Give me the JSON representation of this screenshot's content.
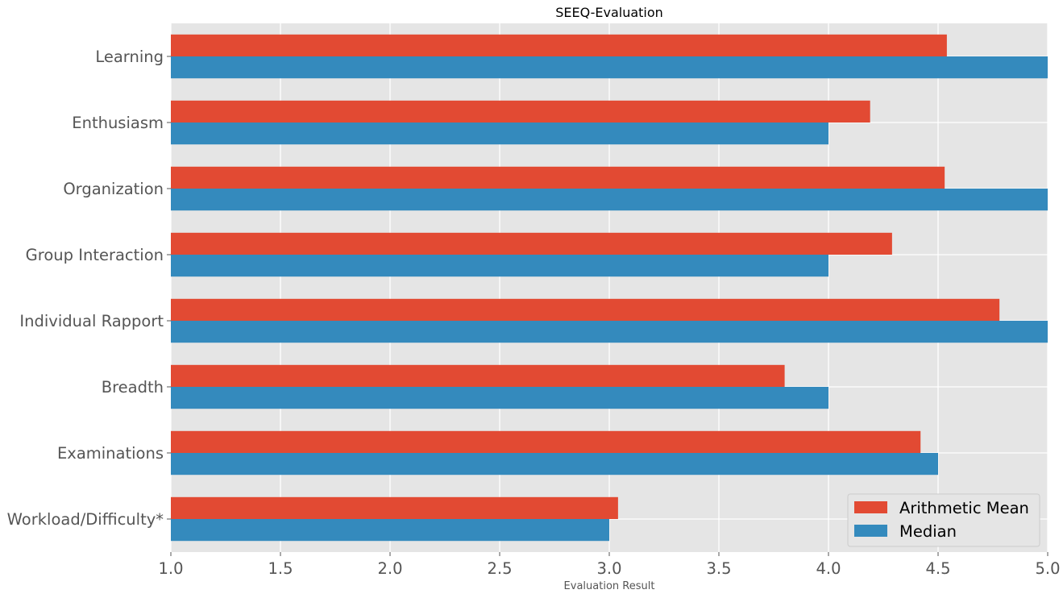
{
  "chart_data": {
    "type": "bar",
    "orientation": "horizontal",
    "title": "SEEQ-Evaluation",
    "xlabel": "Evaluation Result",
    "ylabel": "",
    "xlim": [
      1.0,
      5.0
    ],
    "xticks": [
      "1.0",
      "1.5",
      "2.0",
      "2.5",
      "3.0",
      "3.5",
      "4.0",
      "4.5",
      "5.0"
    ],
    "grid": true,
    "legend_position": "lower-right",
    "categories": [
      "Learning",
      "Enthusiasm",
      "Organization",
      "Group Interaction",
      "Individual Rapport",
      "Breadth",
      "Examinations",
      "Workload/Difficulty*"
    ],
    "series": [
      {
        "name": "Arithmetic Mean",
        "color": "#E24A33",
        "values": [
          4.54,
          4.19,
          4.53,
          4.29,
          4.78,
          3.8,
          4.42,
          3.04
        ]
      },
      {
        "name": "Median",
        "color": "#348ABD",
        "values": [
          5.0,
          4.0,
          5.0,
          4.0,
          5.0,
          4.0,
          4.5,
          3.0
        ]
      }
    ],
    "background_color": "#E5E5E5"
  }
}
